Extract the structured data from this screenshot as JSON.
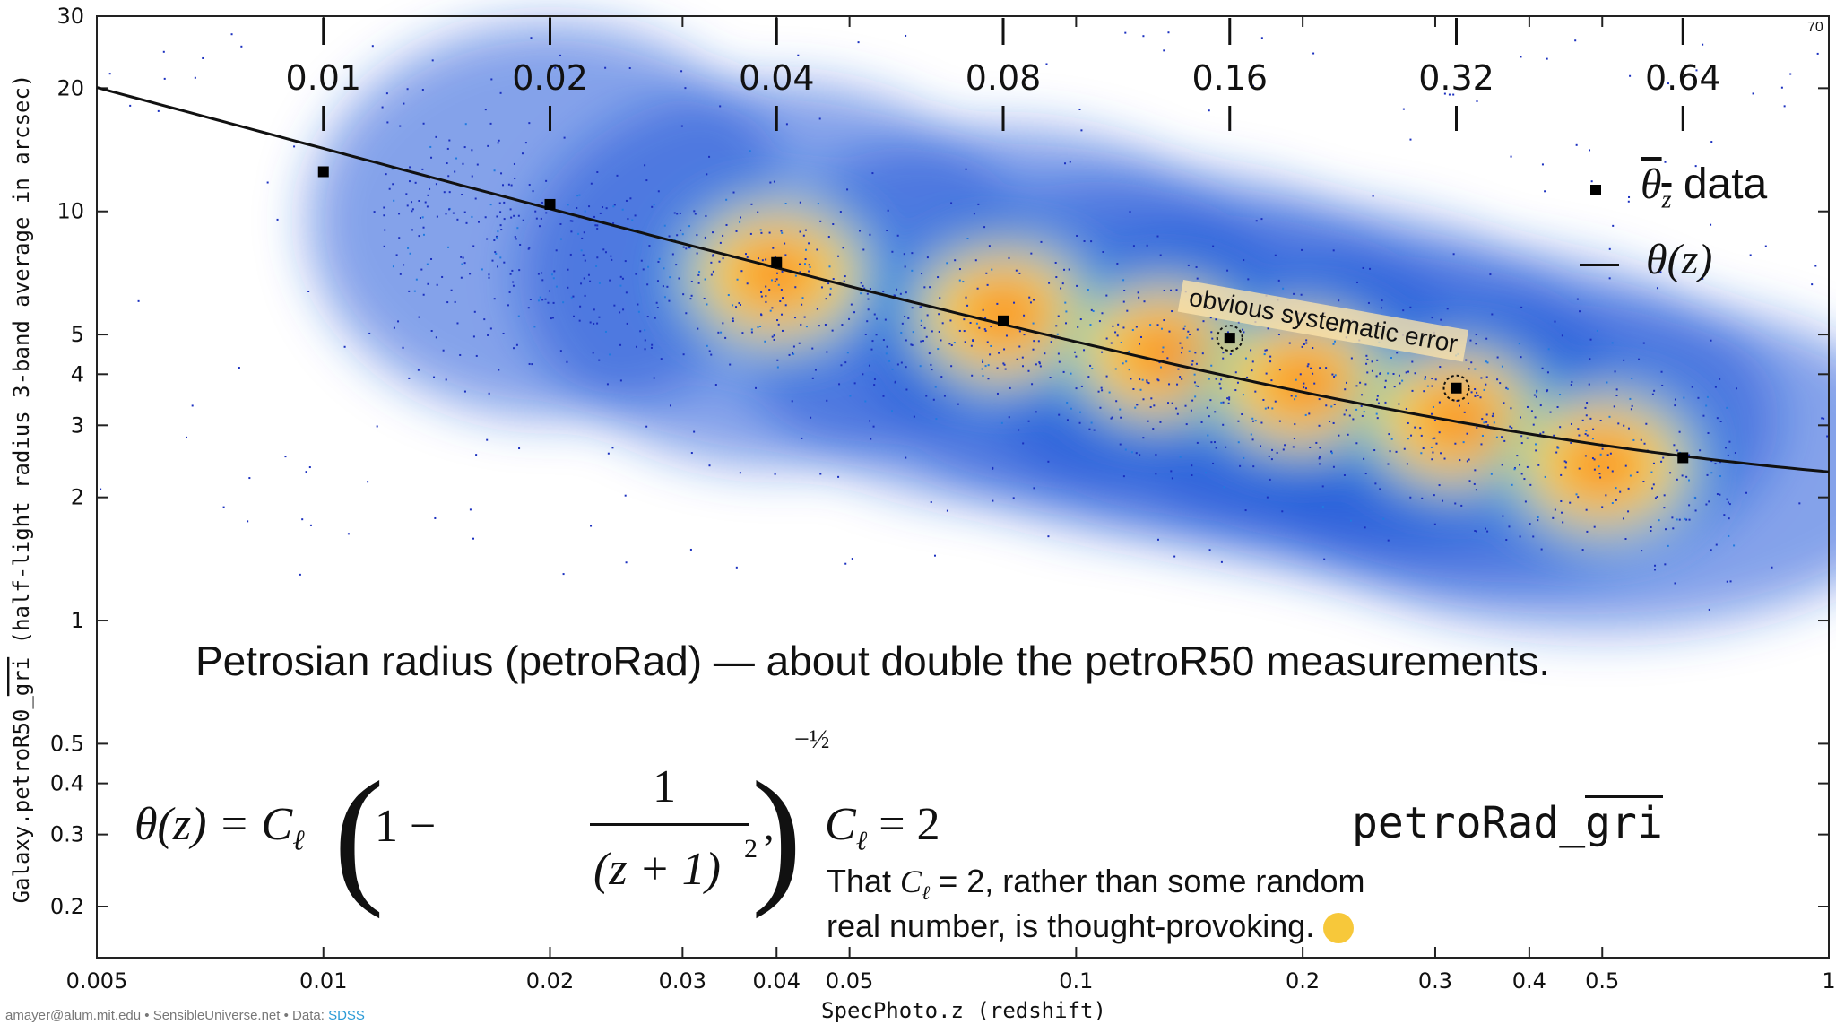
{
  "chart_data": {
    "type": "scatter",
    "title": "",
    "subtitle": "Petrosian radius (petroRad) — about double the petroR50 measurements.",
    "xlabel": "SpecPhoto.z (redshift)",
    "ylabel_prefix": "Galaxy.petroR50_",
    "ylabel_overline": "gri",
    "ylabel_suffix": " (half-light radius 3-band average in arcsec)",
    "x_scale": "log",
    "y_scale": "log",
    "xlim": [
      0.005,
      1
    ],
    "ylim": [
      0.15,
      30
    ],
    "x_ticks": [
      {
        "value": 0.005,
        "label": "0.005"
      },
      {
        "value": 0.01,
        "label": "0.01"
      },
      {
        "value": 0.02,
        "label": "0.02"
      },
      {
        "value": 0.03,
        "label": "0.03"
      },
      {
        "value": 0.04,
        "label": "0.04"
      },
      {
        "value": 0.05,
        "label": "0.05"
      },
      {
        "value": 0.1,
        "label": "0.1"
      },
      {
        "value": 0.2,
        "label": "0.2"
      },
      {
        "value": 0.3,
        "label": "0.3"
      },
      {
        "value": 0.4,
        "label": "0.4"
      },
      {
        "value": 0.5,
        "label": "0.5"
      },
      {
        "value": 1,
        "label": "1"
      }
    ],
    "y_ticks": [
      {
        "value": 0.2,
        "label": "0.2"
      },
      {
        "value": 0.3,
        "label": "0.3"
      },
      {
        "value": 0.4,
        "label": "0.4"
      },
      {
        "value": 0.5,
        "label": "0.5"
      },
      {
        "value": 1,
        "label": "1"
      },
      {
        "value": 2,
        "label": "2"
      },
      {
        "value": 3,
        "label": "3"
      },
      {
        "value": 4,
        "label": "4"
      },
      {
        "value": 5,
        "label": "5"
      },
      {
        "value": 10,
        "label": "10"
      },
      {
        "value": 20,
        "label": "20"
      },
      {
        "value": 30,
        "label": "30"
      }
    ],
    "top_markers": [
      "0.01",
      "0.02",
      "0.04",
      "0.08",
      "0.16",
      "0.32",
      "0.64"
    ],
    "data_series": {
      "name": "θ̄z data",
      "points": [
        {
          "z": 0.01,
          "theta": 12.5
        },
        {
          "z": 0.02,
          "theta": 10.4
        },
        {
          "z": 0.04,
          "theta": 7.5
        },
        {
          "z": 0.08,
          "theta": 5.4
        },
        {
          "z": 0.16,
          "theta": 4.9
        },
        {
          "z": 0.32,
          "theta": 3.7
        },
        {
          "z": 0.64,
          "theta": 2.5
        }
      ]
    },
    "circled_points": [
      4,
      5
    ],
    "model": {
      "name": "θ(z)",
      "C": 2,
      "formula": "theta = C * (1 - 1/(z+1)^2)^(-1/2)"
    },
    "density_cloud": {
      "colormap": [
        "#1a2fbf",
        "#1f7be0",
        "#2cc4e8",
        "#9fe67a",
        "#ffe84a",
        "#ffae2a",
        "#f05a1e"
      ],
      "center_ridge": [
        {
          "z": 0.02,
          "theta": 9.5
        },
        {
          "z": 0.04,
          "theta": 7.0
        },
        {
          "z": 0.08,
          "theta": 5.6
        },
        {
          "z": 0.13,
          "theta": 4.5
        },
        {
          "z": 0.2,
          "theta": 3.8
        },
        {
          "z": 0.32,
          "theta": 3.1
        },
        {
          "z": 0.5,
          "theta": 2.4
        }
      ]
    },
    "legend": {
      "data_label": "data",
      "model_label": "θ(z)"
    },
    "annotation": "obvious systematic error"
  },
  "formula": {
    "lhs": "θ(z) = C",
    "subscript": "ℓ",
    "one_minus": "1 −",
    "numerator": "1",
    "denominator": "(z + 1)",
    "den_exponent": "2",
    "exponent": "−½",
    "comma": ",",
    "c_value": "= 2"
  },
  "label_petro": "petroRad_",
  "label_petro_overline": "gri",
  "note_line1_a": "That ",
  "note_line1_b": " = 2, rather than some random",
  "note_line2": "real number, is thought-provoking.",
  "footer_text": "amayer@alum.mit.edu • SensibleUniverse.net • Data: ",
  "footer_link": "SDSS",
  "page_number": "70",
  "colors": {
    "line": "#111111",
    "marker": "#000000",
    "annotation_bg": "#ffe6aa"
  }
}
